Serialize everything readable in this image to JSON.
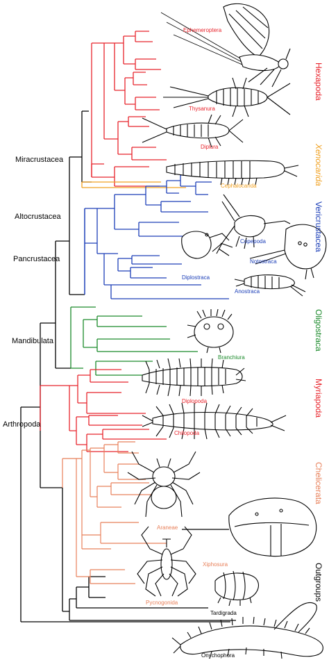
{
  "colors": {
    "black": "#000000",
    "hexapoda": "#e8232b",
    "xenocarida": "#f0a020",
    "vericrustacea": "#1c3fb8",
    "oligostraca": "#1a8a2a",
    "myriapoda": "#e8232b",
    "chelicerata": "#e8805a"
  },
  "node_labels": {
    "miracrustacea": "Miracrustacea",
    "altocrustacea": "Altocrustacea",
    "pancrustacea": "Pancrustacea",
    "mandibulata": "Mandibulata",
    "arthropoda": "Arthropoda"
  },
  "taxon_labels": {
    "ephemeroptera": "Ephemeroptera",
    "thysanura": "Thysanura",
    "diplura": "Diplura",
    "cephalocarida": "Cephalocarida",
    "copepoda": "Copepoda",
    "notostraca": "Notostraca",
    "diplostraca": "Diplostraca",
    "anostraca": "Anostraca",
    "branchiura": "Branchiura",
    "diplopoda": "Diplopoda",
    "chilopoda": "Chilopoda",
    "araneae": "Araneae",
    "xiphosura": "Xiphosura",
    "pycnogonida": "Pycnogonida",
    "tardigrada": "Tardigrada",
    "onychophora": "Onychophora"
  },
  "clade_labels": {
    "hexapoda": "Hexapoda",
    "xenocarida": "Xenocarida",
    "vericrustacea": "Vericrustacea",
    "oligostraca": "Oligostraca",
    "myriapoda": "Myriapoda",
    "chelicerata": "Chelicerata",
    "outgroups": "Outgroups"
  },
  "icons": [
    "mayfly-icon",
    "silverfish-icon",
    "dipluran-icon",
    "cephalocarid-icon",
    "copepod-icon",
    "tadpole-shrimp-icon",
    "water-flea-icon",
    "fairy-shrimp-icon",
    "fish-louse-icon",
    "millipede-icon",
    "centipede-icon",
    "spider-icon",
    "horseshoe-crab-icon",
    "sea-spider-icon",
    "tardigrade-icon",
    "velvet-worm-icon"
  ]
}
